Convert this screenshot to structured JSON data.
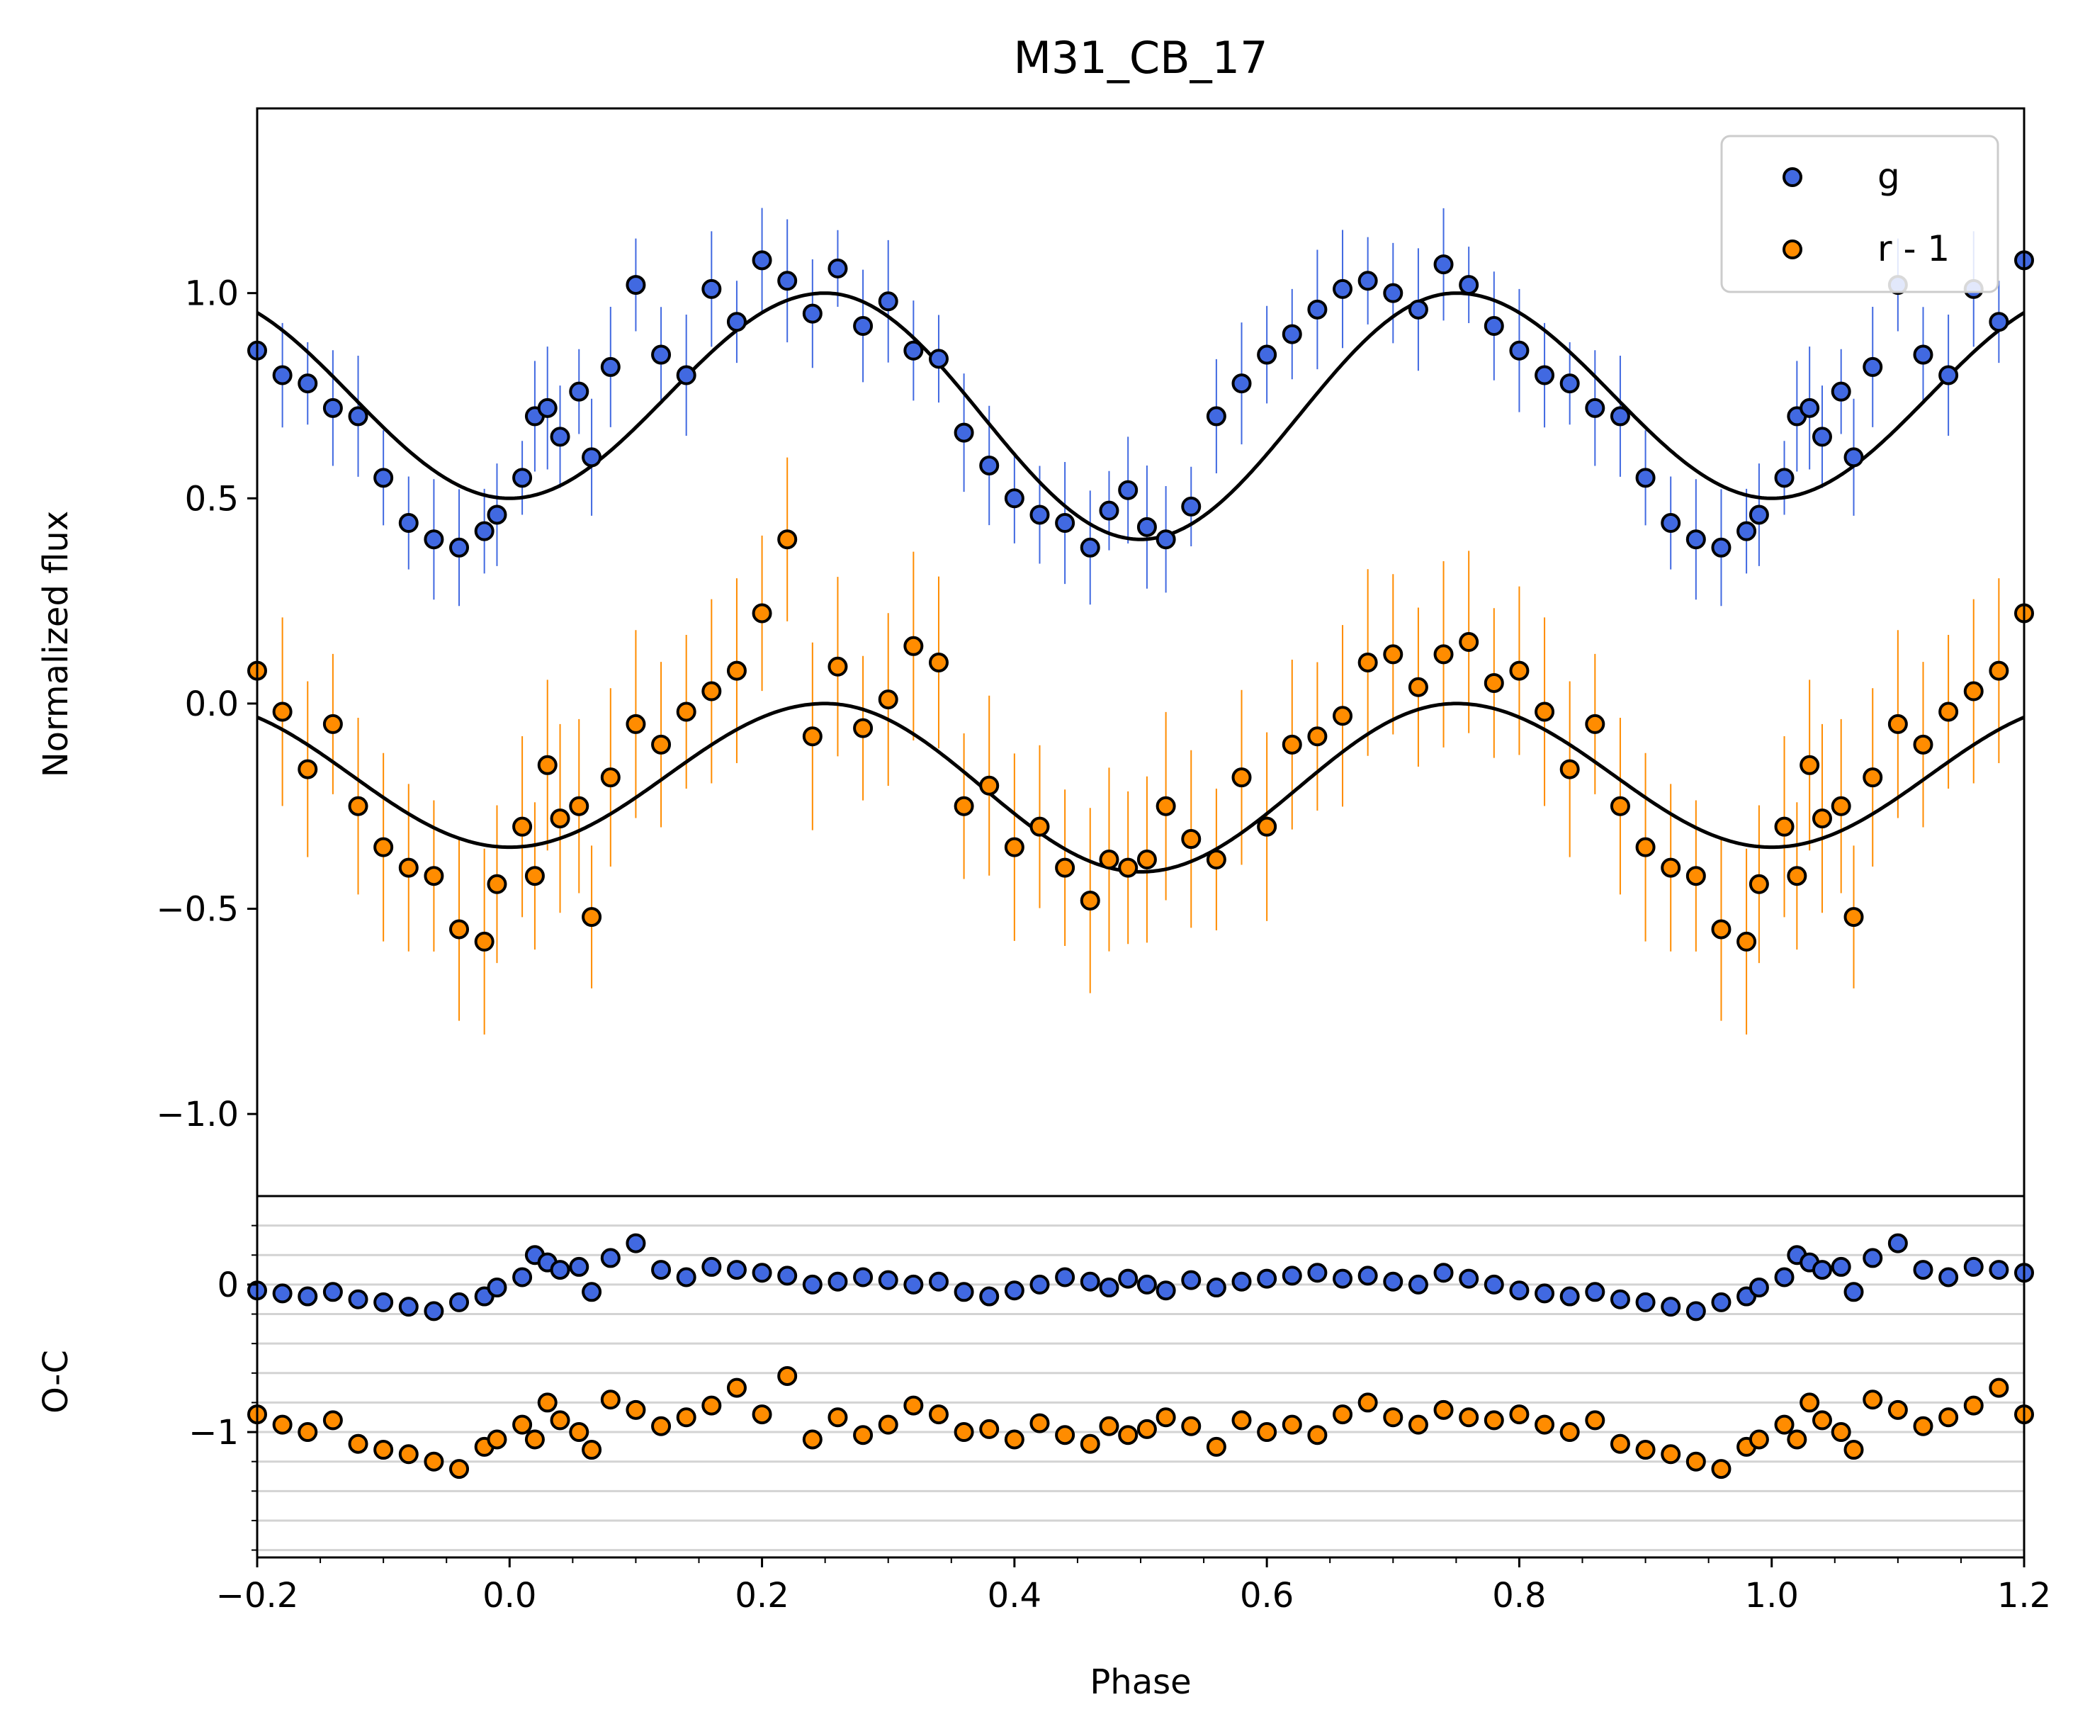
{
  "chart_data": [
    {
      "type": "scatter",
      "title": "M31_CB_17",
      "xlabel": "Phase",
      "ylabel": "Normalized flux",
      "xlim": [
        -0.2,
        1.2
      ],
      "ylim": [
        -1.2,
        1.45
      ],
      "x_ticks": [
        "−0.2",
        "0.0",
        "0.2",
        "0.4",
        "0.6",
        "0.8",
        "1.0",
        "1.2"
      ],
      "y_ticks": [
        "−1.0",
        "−0.5",
        "0.0",
        "0.5",
        "1.0"
      ],
      "legend": {
        "placement": "top-right",
        "entries": [
          "g",
          "r - 1"
        ]
      },
      "series": [
        {
          "name": "g",
          "color": "#4169e1",
          "model": {
            "level_max": 1.0,
            "min_primary": 0.5,
            "min_secondary": 0.4,
            "primary_phase": 0.0,
            "secondary_phase": 0.5
          },
          "phases": [
            0.01,
            0.02,
            0.03,
            0.04,
            0.055,
            0.065,
            0.08,
            0.1,
            0.12,
            0.14,
            0.16,
            0.18,
            0.2,
            0.22,
            0.24,
            0.26,
            0.28,
            0.3,
            0.32,
            0.34,
            0.36,
            0.38,
            0.4,
            0.42,
            0.44,
            0.46,
            0.475,
            0.49,
            0.505,
            0.52,
            0.54,
            0.56,
            0.58,
            0.6,
            0.62,
            0.64,
            0.66,
            0.68,
            0.7,
            0.72,
            0.74,
            0.76,
            0.78,
            0.8,
            0.82,
            0.84,
            0.86,
            0.88,
            0.9,
            0.92,
            0.94,
            0.96,
            0.98,
            0.99
          ],
          "values": [
            0.55,
            0.7,
            0.72,
            0.65,
            0.76,
            0.6,
            0.82,
            1.02,
            0.85,
            0.8,
            1.01,
            0.93,
            1.08,
            1.03,
            0.95,
            1.06,
            0.92,
            0.98,
            0.86,
            0.84,
            0.66,
            0.58,
            0.5,
            0.46,
            0.44,
            0.38,
            0.47,
            0.52,
            0.43,
            0.4,
            0.48,
            0.7,
            0.78,
            0.85,
            0.9,
            0.96,
            1.01,
            1.03,
            1.0,
            0.96,
            1.07,
            1.02,
            0.92,
            0.86,
            0.8,
            0.78,
            0.72,
            0.7,
            0.55,
            0.44,
            0.4,
            0.38,
            0.42,
            0.46
          ]
        },
        {
          "name": "r - 1",
          "color": "#ff8c00",
          "model": {
            "level_max": 0.0,
            "min_primary": -0.35,
            "min_secondary": -0.41,
            "primary_phase": 0.0,
            "secondary_phase": 0.5
          },
          "phases": [
            0.01,
            0.02,
            0.03,
            0.04,
            0.055,
            0.065,
            0.08,
            0.1,
            0.12,
            0.14,
            0.16,
            0.18,
            0.2,
            0.22,
            0.24,
            0.26,
            0.28,
            0.3,
            0.32,
            0.34,
            0.36,
            0.38,
            0.4,
            0.42,
            0.44,
            0.46,
            0.475,
            0.49,
            0.505,
            0.52,
            0.54,
            0.56,
            0.58,
            0.6,
            0.62,
            0.64,
            0.66,
            0.68,
            0.7,
            0.72,
            0.74,
            0.76,
            0.78,
            0.8,
            0.82,
            0.84,
            0.86,
            0.88,
            0.9,
            0.92,
            0.94,
            0.96,
            0.98,
            0.99
          ],
          "values": [
            -0.3,
            -0.42,
            -0.15,
            -0.28,
            -0.25,
            -0.52,
            -0.18,
            -0.05,
            -0.1,
            -0.02,
            0.03,
            0.08,
            0.22,
            0.4,
            -0.08,
            0.09,
            -0.06,
            0.01,
            0.14,
            0.1,
            -0.25,
            -0.2,
            -0.35,
            -0.3,
            -0.4,
            -0.48,
            -0.38,
            -0.4,
            -0.38,
            -0.25,
            -0.33,
            -0.38,
            -0.18,
            -0.3,
            -0.1,
            -0.08,
            -0.03,
            0.1,
            0.12,
            0.04,
            0.12,
            0.15,
            0.05,
            0.08,
            -0.02,
            -0.16,
            -0.05,
            -0.25,
            -0.35,
            -0.4,
            -0.42,
            -0.55,
            -0.58,
            -0.44
          ]
        }
      ]
    },
    {
      "type": "scatter",
      "xlabel": "Phase",
      "ylabel": "O-C",
      "xlim": [
        -0.2,
        1.2
      ],
      "ylim": [
        -1.85,
        0.6
      ],
      "y_ticks": [
        "0",
        "−1"
      ],
      "series": [
        {
          "name": "g",
          "color": "#4169e1",
          "phases": [
            0.01,
            0.02,
            0.03,
            0.04,
            0.055,
            0.065,
            0.08,
            0.1,
            0.12,
            0.14,
            0.16,
            0.18,
            0.2,
            0.22,
            0.24,
            0.26,
            0.28,
            0.3,
            0.32,
            0.34,
            0.36,
            0.38,
            0.4,
            0.42,
            0.44,
            0.46,
            0.475,
            0.49,
            0.505,
            0.52,
            0.54,
            0.56,
            0.58,
            0.6,
            0.62,
            0.64,
            0.66,
            0.68,
            0.7,
            0.72,
            0.74,
            0.76,
            0.78,
            0.8,
            0.82,
            0.84,
            0.86,
            0.88,
            0.9,
            0.92,
            0.94,
            0.96,
            0.98,
            0.99
          ],
          "values": [
            0.05,
            0.2,
            0.15,
            0.1,
            0.12,
            -0.05,
            0.18,
            0.28,
            0.1,
            0.05,
            0.12,
            0.1,
            0.08,
            0.06,
            0.0,
            0.02,
            0.05,
            0.03,
            0.0,
            0.02,
            -0.05,
            -0.08,
            -0.04,
            0.0,
            0.05,
            0.02,
            -0.02,
            0.04,
            0.0,
            -0.04,
            0.03,
            -0.02,
            0.02,
            0.04,
            0.06,
            0.08,
            0.04,
            0.06,
            0.02,
            0.0,
            0.08,
            0.04,
            0.0,
            -0.04,
            -0.06,
            -0.08,
            -0.05,
            -0.1,
            -0.12,
            -0.15,
            -0.18,
            -0.12,
            -0.08,
            -0.02
          ]
        },
        {
          "name": "r - 1",
          "color": "#ff8c00",
          "phases": [
            0.01,
            0.02,
            0.03,
            0.04,
            0.055,
            0.065,
            0.08,
            0.1,
            0.12,
            0.14,
            0.16,
            0.18,
            0.2,
            0.22,
            0.24,
            0.26,
            0.28,
            0.3,
            0.32,
            0.34,
            0.36,
            0.38,
            0.4,
            0.42,
            0.44,
            0.46,
            0.475,
            0.49,
            0.505,
            0.52,
            0.54,
            0.56,
            0.58,
            0.6,
            0.62,
            0.64,
            0.66,
            0.68,
            0.7,
            0.72,
            0.74,
            0.76,
            0.78,
            0.8,
            0.82,
            0.84,
            0.86,
            0.88,
            0.9,
            0.92,
            0.94,
            0.96,
            0.98,
            0.99
          ],
          "values": [
            -0.95,
            -1.05,
            -0.8,
            -0.92,
            -1.0,
            -1.12,
            -0.78,
            -0.85,
            -0.96,
            -0.9,
            -0.82,
            -0.7,
            -0.88,
            -0.62,
            -1.05,
            -0.9,
            -1.02,
            -0.95,
            -0.82,
            -0.88,
            -1.0,
            -0.98,
            -1.05,
            -0.94,
            -1.02,
            -1.08,
            -0.96,
            -1.02,
            -0.98,
            -0.9,
            -0.96,
            -1.1,
            -0.92,
            -1.0,
            -0.95,
            -1.02,
            -0.88,
            -0.8,
            -0.9,
            -0.95,
            -0.85,
            -0.9,
            -0.92,
            -0.88,
            -0.95,
            -1.0,
            -0.92,
            -1.08,
            -1.12,
            -1.15,
            -1.2,
            -1.25,
            -1.1,
            -1.05
          ]
        }
      ]
    }
  ]
}
